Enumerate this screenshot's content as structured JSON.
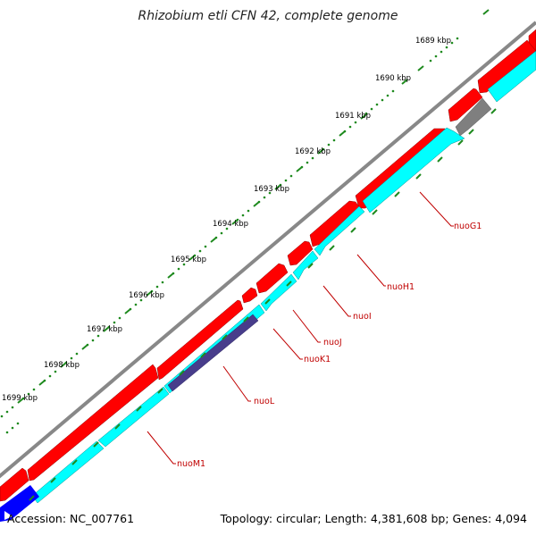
{
  "title": "Rhizobium etli CFN 42, complete genome",
  "footer": {
    "accession": "Accession: NC_007761",
    "summary": "Topology: circular; Length: 4,381,608 bp; Genes: 4,094"
  },
  "scale_labels": [
    "1689 kbp",
    "1690 kbp",
    "1691 kbp",
    "1692 kbp",
    "1693 kbp",
    "1694 kbp",
    "1695 kbp",
    "1696 kbp",
    "1697 kbp",
    "1698 kbp",
    "1699 kbp"
  ],
  "gene_labels": [
    "nuoG1",
    "nuoH1",
    "nuoI",
    "nuoJ",
    "nuoK1",
    "nuoL",
    "nuoM1"
  ],
  "colors": {
    "backbone": "#808080",
    "forward_cds": "#ff0000",
    "reverse_cds": "#00ffff",
    "other_feature": "#808080",
    "highlight_feature": "#483d8b",
    "blue_feature": "#0000ff",
    "ticks": "#228b22",
    "label": "#c00000"
  }
}
